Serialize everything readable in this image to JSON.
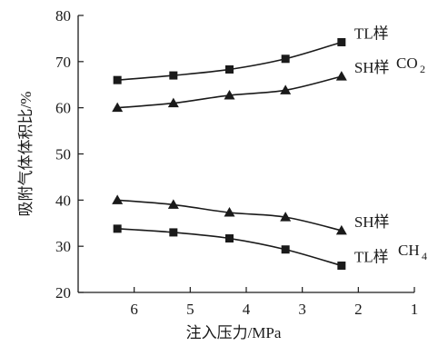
{
  "chart_data": {
    "type": "line",
    "title": "",
    "xlabel": "注入压力/MPa",
    "ylabel": "吸附气体体积比/%",
    "xlim": [
      7,
      1
    ],
    "ylim": [
      20,
      80
    ],
    "x_reversed": true,
    "grid": false,
    "x_ticks": [
      6,
      5,
      4,
      3,
      2,
      1
    ],
    "y_ticks": [
      20,
      30,
      40,
      50,
      60,
      70,
      80
    ],
    "series": [
      {
        "name": "TL样",
        "group": "CO2",
        "marker": "square",
        "x": [
          6.3,
          5.3,
          4.3,
          3.3,
          2.3
        ],
        "values": [
          66,
          67,
          68.3,
          70.6,
          74.2
        ]
      },
      {
        "name": "SH样",
        "group": "CO2",
        "marker": "triangle",
        "x": [
          6.3,
          5.3,
          4.3,
          3.3,
          2.3
        ],
        "values": [
          60,
          61,
          62.7,
          63.8,
          66.8
        ]
      },
      {
        "name": "SH样",
        "group": "CH4",
        "marker": "triangle",
        "x": [
          6.3,
          5.3,
          4.3,
          3.3,
          2.3
        ],
        "values": [
          40,
          39,
          37.3,
          36.3,
          33.4
        ]
      },
      {
        "name": "TL样",
        "group": "CH4",
        "marker": "square",
        "x": [
          6.3,
          5.3,
          4.3,
          3.3,
          2.3
        ],
        "values": [
          33.8,
          33,
          31.7,
          29.3,
          25.8
        ]
      }
    ],
    "group_labels": {
      "CO2": "CO",
      "CO2_sub": "2",
      "CH4": "CH",
      "CH4_sub": "4"
    }
  }
}
